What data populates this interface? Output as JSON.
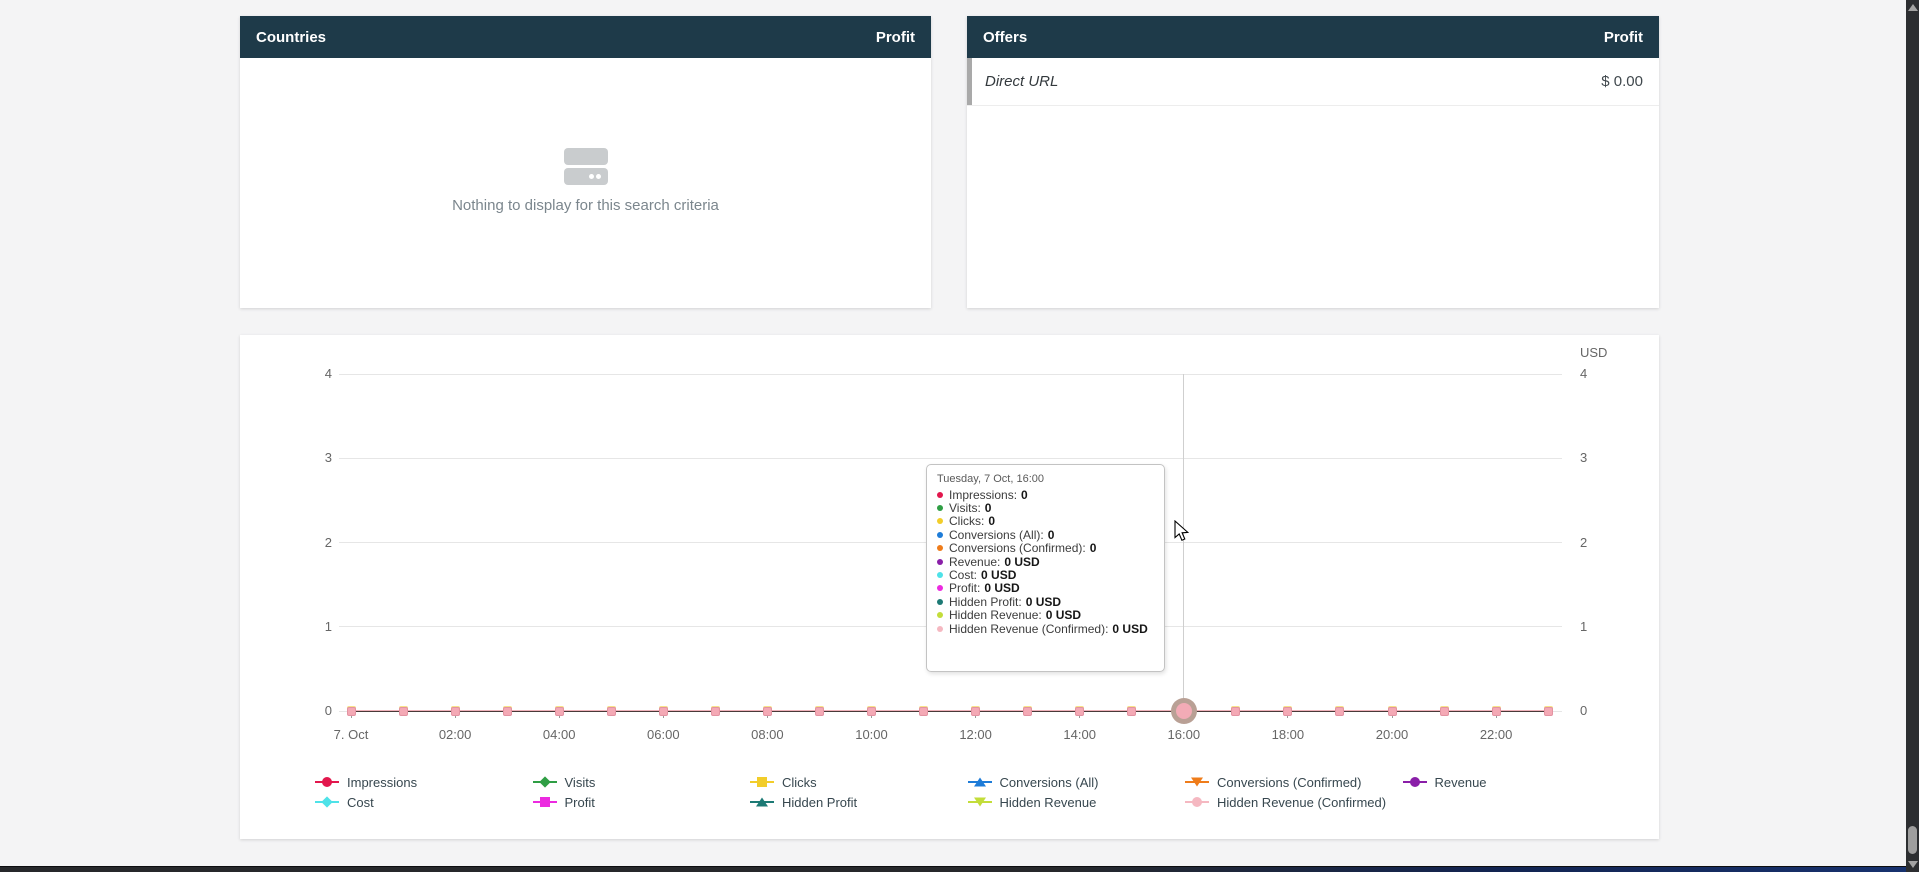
{
  "panels": {
    "countries": {
      "title": "Countries",
      "metric": "Profit",
      "empty_text": "Nothing to display for this search criteria"
    },
    "offers": {
      "title": "Offers",
      "metric": "Profit",
      "rows": [
        {
          "name": "Direct URL",
          "value": "$ 0.00"
        }
      ]
    }
  },
  "chart_data": {
    "type": "line",
    "title": "",
    "unit_label": "USD",
    "grid": true,
    "legend_position": "bottom",
    "ylim": [
      0,
      4
    ],
    "y_ticks": [
      0,
      1,
      2,
      3,
      4
    ],
    "x_tick_labels": [
      "7. Oct",
      "02:00",
      "04:00",
      "06:00",
      "08:00",
      "10:00",
      "12:00",
      "14:00",
      "16:00",
      "18:00",
      "20:00",
      "22:00"
    ],
    "x_points": 24,
    "series": [
      {
        "name": "Impressions",
        "color": "#e2174d",
        "marker": "circle",
        "values": [
          0,
          0,
          0,
          0,
          0,
          0,
          0,
          0,
          0,
          0,
          0,
          0,
          0,
          0,
          0,
          0,
          0,
          0,
          0,
          0,
          0,
          0,
          0,
          0
        ]
      },
      {
        "name": "Visits",
        "color": "#2f9e44",
        "marker": "diamond",
        "values": [
          0,
          0,
          0,
          0,
          0,
          0,
          0,
          0,
          0,
          0,
          0,
          0,
          0,
          0,
          0,
          0,
          0,
          0,
          0,
          0,
          0,
          0,
          0,
          0
        ]
      },
      {
        "name": "Clicks",
        "color": "#f2cd2a",
        "marker": "square",
        "values": [
          0,
          0,
          0,
          0,
          0,
          0,
          0,
          0,
          0,
          0,
          0,
          0,
          0,
          0,
          0,
          0,
          0,
          0,
          0,
          0,
          0,
          0,
          0,
          0
        ]
      },
      {
        "name": "Conversions (All)",
        "color": "#1e7cd8",
        "marker": "triangle-up",
        "values": [
          0,
          0,
          0,
          0,
          0,
          0,
          0,
          0,
          0,
          0,
          0,
          0,
          0,
          0,
          0,
          0,
          0,
          0,
          0,
          0,
          0,
          0,
          0,
          0
        ]
      },
      {
        "name": "Conversions (Confirmed)",
        "color": "#ef7c1a",
        "marker": "triangle-down",
        "values": [
          0,
          0,
          0,
          0,
          0,
          0,
          0,
          0,
          0,
          0,
          0,
          0,
          0,
          0,
          0,
          0,
          0,
          0,
          0,
          0,
          0,
          0,
          0,
          0
        ]
      },
      {
        "name": "Revenue",
        "color": "#8a1fa8",
        "marker": "circle",
        "values": [
          0,
          0,
          0,
          0,
          0,
          0,
          0,
          0,
          0,
          0,
          0,
          0,
          0,
          0,
          0,
          0,
          0,
          0,
          0,
          0,
          0,
          0,
          0,
          0
        ]
      },
      {
        "name": "Cost",
        "color": "#4ee2e8",
        "marker": "diamond",
        "values": [
          0,
          0,
          0,
          0,
          0,
          0,
          0,
          0,
          0,
          0,
          0,
          0,
          0,
          0,
          0,
          0,
          0,
          0,
          0,
          0,
          0,
          0,
          0,
          0
        ]
      },
      {
        "name": "Profit",
        "color": "#ec2ae0",
        "marker": "square",
        "values": [
          0,
          0,
          0,
          0,
          0,
          0,
          0,
          0,
          0,
          0,
          0,
          0,
          0,
          0,
          0,
          0,
          0,
          0,
          0,
          0,
          0,
          0,
          0,
          0
        ]
      },
      {
        "name": "Hidden Profit",
        "color": "#1d7a75",
        "marker": "triangle-up",
        "values": [
          0,
          0,
          0,
          0,
          0,
          0,
          0,
          0,
          0,
          0,
          0,
          0,
          0,
          0,
          0,
          0,
          0,
          0,
          0,
          0,
          0,
          0,
          0,
          0
        ]
      },
      {
        "name": "Hidden Revenue",
        "color": "#c3dd3a",
        "marker": "triangle-down",
        "values": [
          0,
          0,
          0,
          0,
          0,
          0,
          0,
          0,
          0,
          0,
          0,
          0,
          0,
          0,
          0,
          0,
          0,
          0,
          0,
          0,
          0,
          0,
          0,
          0
        ]
      },
      {
        "name": "Hidden Revenue (Confirmed)",
        "color": "#f5b8c1",
        "marker": "circle",
        "values": [
          0,
          0,
          0,
          0,
          0,
          0,
          0,
          0,
          0,
          0,
          0,
          0,
          0,
          0,
          0,
          0,
          0,
          0,
          0,
          0,
          0,
          0,
          0,
          0
        ]
      }
    ],
    "tooltip": {
      "title": "Tuesday, 7 Oct, 16:00",
      "hover_index": 16,
      "rows": [
        {
          "label": "Impressions",
          "value": "0",
          "color": "#e2174d"
        },
        {
          "label": "Visits",
          "value": "0",
          "color": "#2f9e44"
        },
        {
          "label": "Clicks",
          "value": "0",
          "color": "#f2cd2a"
        },
        {
          "label": "Conversions (All)",
          "value": "0",
          "color": "#1e7cd8"
        },
        {
          "label": "Conversions (Confirmed)",
          "value": "0",
          "color": "#ef7c1a"
        },
        {
          "label": "Revenue",
          "value": "0 USD",
          "color": "#8a1fa8"
        },
        {
          "label": "Cost",
          "value": "0 USD",
          "color": "#4ee2e8"
        },
        {
          "label": "Profit",
          "value": "0 USD",
          "color": "#ec2ae0"
        },
        {
          "label": "Hidden Profit",
          "value": "0 USD",
          "color": "#1d7a75"
        },
        {
          "label": "Hidden Revenue",
          "value": "0 USD",
          "color": "#c3dd3a"
        },
        {
          "label": "Hidden Revenue (Confirmed)",
          "value": "0 USD",
          "color": "#f5b8c1"
        }
      ]
    }
  },
  "colors": {
    "header_bg": "#1e3a49",
    "accent_bar": "#a9a9a9",
    "gridline": "#e6e6e6"
  }
}
